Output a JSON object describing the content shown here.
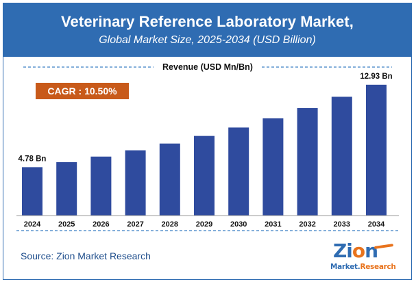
{
  "header": {
    "title": "Veterinary Reference Laboratory Market,",
    "subtitle": "Global Market Size, 2025-2034 (USD Billion)"
  },
  "footer": {
    "source": "Source: Zion Market Research"
  },
  "logo": {
    "brand_part1": "Zi",
    "brand_o": "o",
    "brand_part2": "n",
    "tagline_part1": "Market.",
    "tagline_part2": "Research"
  },
  "colors": {
    "header_bg": "#2f6cb2",
    "bar": "#2f4b9e",
    "cagr_bg": "#c85a1a",
    "accent_orange": "#e8731d",
    "dash": "#3a7fc4"
  },
  "chart_data": {
    "type": "bar",
    "title": "Revenue (USD Mn/Bn)",
    "categories": [
      "2024",
      "2025",
      "2026",
      "2027",
      "2028",
      "2029",
      "2030",
      "2031",
      "2032",
      "2033",
      "2034"
    ],
    "values": [
      4.78,
      5.28,
      5.83,
      6.45,
      7.12,
      7.87,
      8.7,
      9.61,
      10.62,
      11.74,
      12.93
    ],
    "ylim": [
      0,
      14
    ],
    "data_labels": {
      "first": "4.78 Bn",
      "last": "12.93 Bn"
    },
    "annotation": "CAGR : 10.50%",
    "xlabel": "",
    "ylabel": "",
    "grid": false
  }
}
